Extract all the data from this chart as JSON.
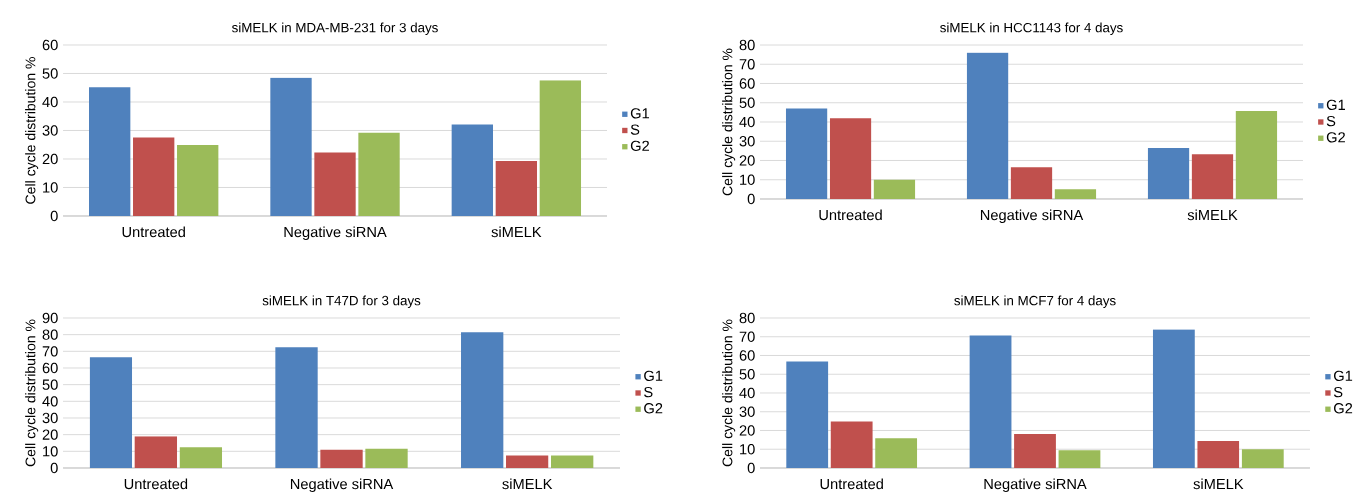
{
  "chart_data": [
    {
      "type": "bar",
      "title": "siMELK in MDA-MB-231 for 3 days",
      "ylabel": "Cell cycle distribution %",
      "categories": [
        "Untreated",
        "Negative siRNA",
        "siMELK"
      ],
      "series": [
        {
          "name": "G1",
          "color": "#4f81bd",
          "values": [
            45.2,
            48.5,
            32.1
          ]
        },
        {
          "name": "S",
          "color": "#c0504d",
          "values": [
            27.5,
            22.3,
            19.3
          ]
        },
        {
          "name": "G2",
          "color": "#9bbb59",
          "values": [
            24.9,
            29.2,
            47.6
          ]
        }
      ],
      "ylim": [
        0,
        60
      ],
      "yticks": [
        0,
        10,
        20,
        30,
        40,
        50,
        60
      ],
      "grid": "y",
      "legend": "right"
    },
    {
      "type": "bar",
      "title": "siMELK in HCC1143 for 4 days",
      "ylabel": "Cell cycle distribution %",
      "categories": [
        "Untreated",
        "Negative siRNA",
        "siMELK"
      ],
      "series": [
        {
          "name": "G1",
          "color": "#4f81bd",
          "values": [
            47,
            76,
            26.5
          ]
        },
        {
          "name": "S",
          "color": "#c0504d",
          "values": [
            42,
            16.5,
            23.3
          ]
        },
        {
          "name": "G2",
          "color": "#9bbb59",
          "values": [
            10,
            5,
            45.7
          ]
        }
      ],
      "ylim": [
        0,
        80
      ],
      "yticks": [
        0,
        10,
        20,
        30,
        40,
        50,
        60,
        70,
        80
      ],
      "grid": "y",
      "legend": "right"
    },
    {
      "type": "bar",
      "title": "siMELK in T47D for 3 days",
      "ylabel": "Cell cycle distribution %",
      "categories": [
        "Untreated",
        "Negative siRNA",
        "siMELK"
      ],
      "series": [
        {
          "name": "G1",
          "color": "#4f81bd",
          "values": [
            66.5,
            72.5,
            81.5
          ]
        },
        {
          "name": "S",
          "color": "#c0504d",
          "values": [
            19,
            11,
            7.5
          ]
        },
        {
          "name": "G2",
          "color": "#9bbb59",
          "values": [
            12.5,
            11.5,
            7.5
          ]
        }
      ],
      "ylim": [
        0,
        90
      ],
      "yticks": [
        0,
        10,
        20,
        30,
        40,
        50,
        60,
        70,
        80,
        90
      ],
      "grid": "y",
      "legend": "right"
    },
    {
      "type": "bar",
      "title": "siMELK in MCF7 for 4 days",
      "ylabel": "Cell cycle distribution %",
      "categories": [
        "Untreated",
        "Negative siRNA",
        "siMELK"
      ],
      "series": [
        {
          "name": "G1",
          "color": "#4f81bd",
          "values": [
            56.8,
            70.7,
            73.8
          ]
        },
        {
          "name": "S",
          "color": "#c0504d",
          "values": [
            24.8,
            18.1,
            14.4
          ]
        },
        {
          "name": "G2",
          "color": "#9bbb59",
          "values": [
            15.9,
            9.5,
            10
          ]
        }
      ],
      "ylim": [
        0,
        80
      ],
      "yticks": [
        0,
        10,
        20,
        30,
        40,
        50,
        60,
        70,
        80
      ],
      "grid": "y",
      "legend": "right"
    }
  ]
}
